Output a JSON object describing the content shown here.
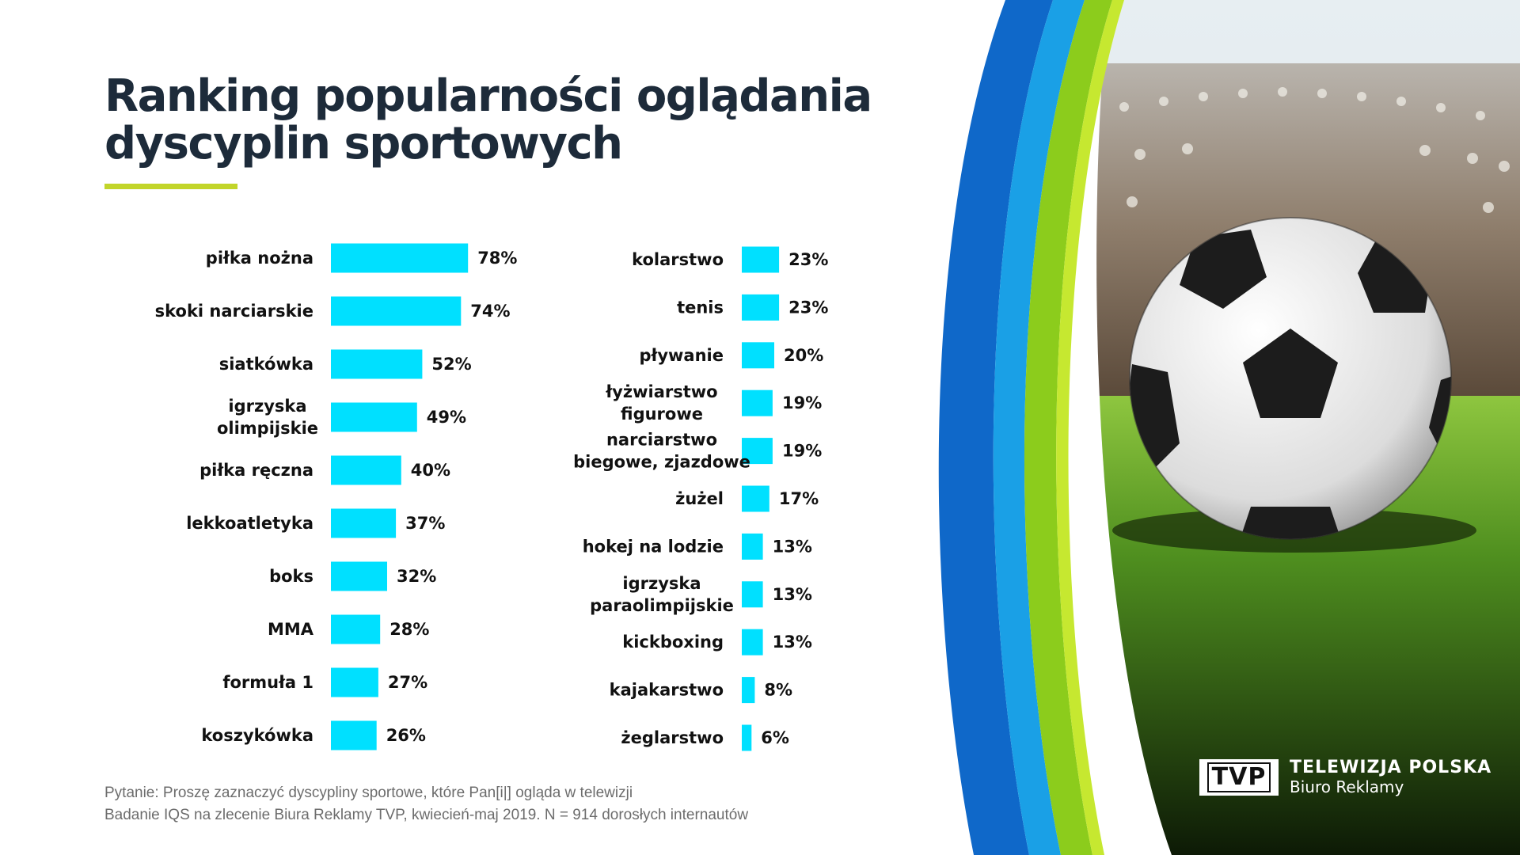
{
  "title": {
    "line1": "Ranking popularności oglądania",
    "line2": "dyscyplin sportowych"
  },
  "colors": {
    "bar": "#00e0ff",
    "title": "#1d2b3a",
    "accent_underline": "#c2d52a",
    "curve_blue": "#0f68c9",
    "curve_green": "#8ccc1c"
  },
  "chart_data": [
    {
      "type": "bar",
      "orientation": "horizontal",
      "unit": "%",
      "categories": [
        [
          "piłka nożna"
        ],
        [
          "skoki narciarskie"
        ],
        [
          "siatkówka"
        ],
        [
          "igrzyska",
          "olimpijskie"
        ],
        [
          "piłka ręczna"
        ],
        [
          "lekkoatletyka"
        ],
        [
          "boks"
        ],
        [
          "MMA"
        ],
        [
          "formuła 1"
        ],
        [
          "koszykówka"
        ]
      ],
      "values": [
        78,
        74,
        52,
        49,
        40,
        37,
        32,
        28,
        27,
        26
      ],
      "value_labels": [
        "78%",
        "74%",
        "52%",
        "49%",
        "40%",
        "37%",
        "32%",
        "28%",
        "27%",
        "26%"
      ]
    },
    {
      "type": "bar",
      "orientation": "horizontal",
      "unit": "%",
      "categories": [
        [
          "kolarstwo"
        ],
        [
          "tenis"
        ],
        [
          "pływanie"
        ],
        [
          "łyżwiarstwo",
          "figurowe"
        ],
        [
          "narciarstwo",
          "biegowe, zjazdowe"
        ],
        [
          "żużel"
        ],
        [
          "hokej na lodzie"
        ],
        [
          "igrzyska",
          "paraolimpijskie"
        ],
        [
          "kickboxing"
        ],
        [
          "kajakarstwo"
        ],
        [
          "żeglarstwo"
        ]
      ],
      "values": [
        23,
        23,
        20,
        19,
        19,
        17,
        13,
        13,
        13,
        8,
        6
      ],
      "value_labels": [
        "23%",
        "23%",
        "20%",
        "19%",
        "19%",
        "17%",
        "13%",
        "13%",
        "13%",
        "8%",
        "6%"
      ]
    }
  ],
  "footnote": {
    "line1": "Pytanie: Proszę zaznaczyć dyscypliny sportowe, które Pan[i|] ogląda w telewizji",
    "line2": "Badanie IQS na zlecenie Biura Reklamy TVP, kwiecień-maj 2019. N = 914 dorosłych internautów"
  },
  "logo": {
    "mark": "TVP",
    "line1": "TELEWIZJA POLSKA",
    "line2": "Biuro Reklamy"
  }
}
